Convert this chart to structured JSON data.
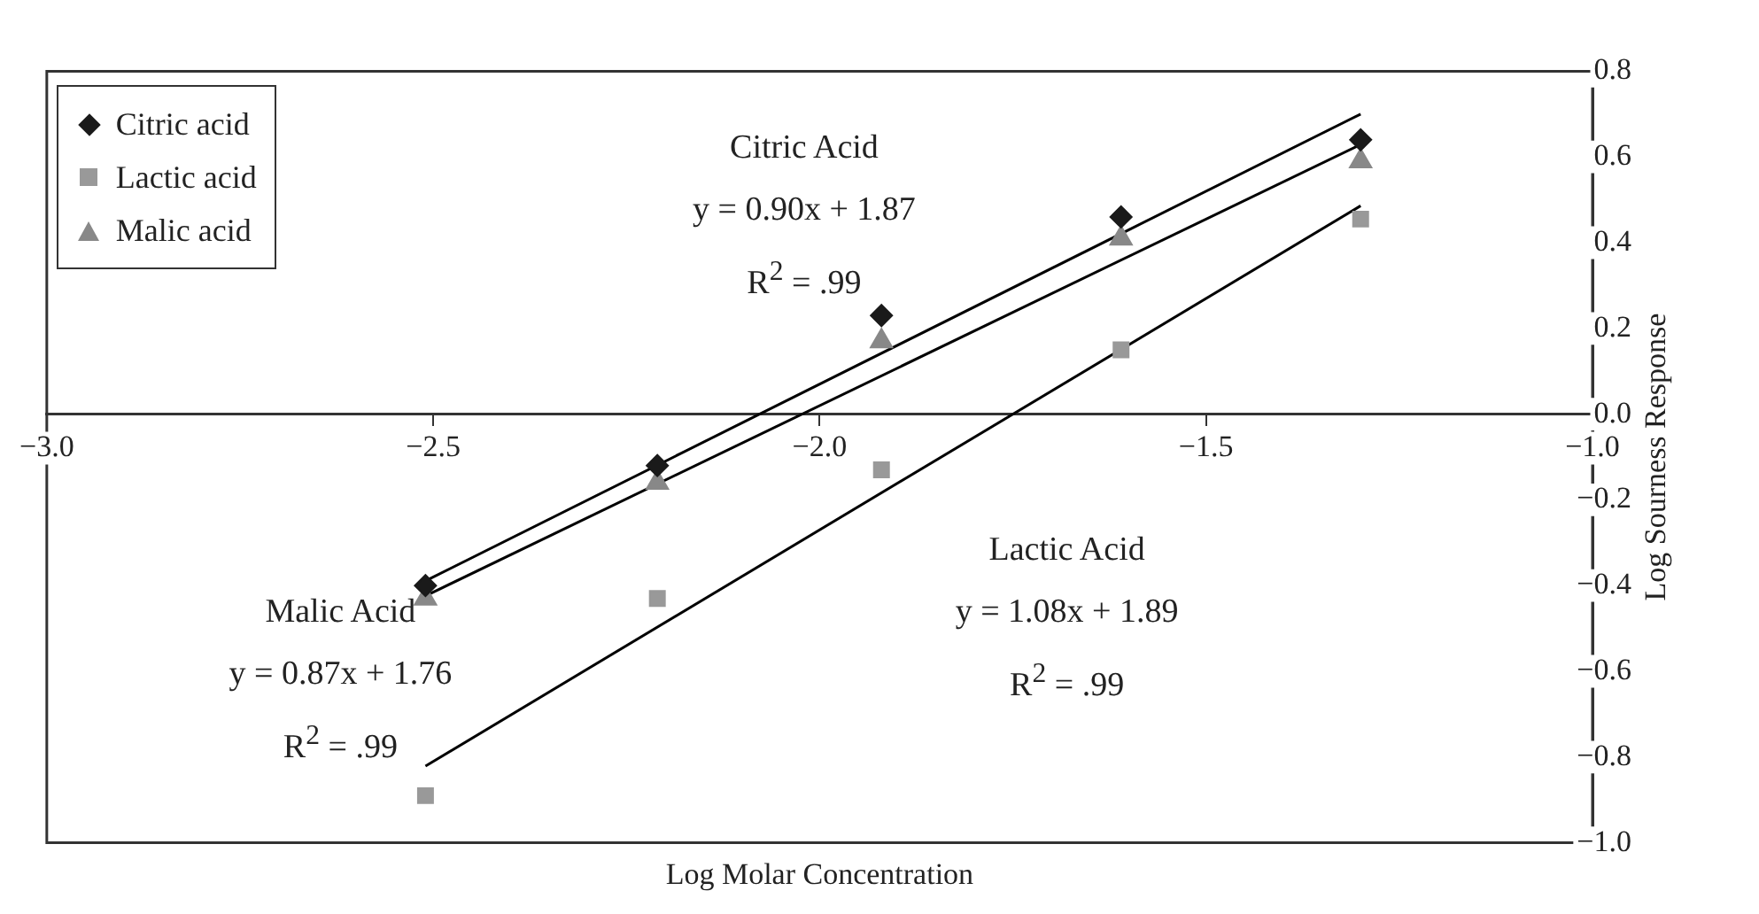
{
  "chart_data": {
    "type": "scatter",
    "xlabel": "Log Molar Concentration",
    "ylabel": "Log Sourness Response",
    "xlim": [
      -3,
      -1
    ],
    "ylim": [
      -1,
      0.8
    ],
    "xticks": [
      {
        "value": -3,
        "label": "−3.0"
      },
      {
        "value": -2.5,
        "label": "−2.5"
      },
      {
        "value": -2,
        "label": "−2.0"
      },
      {
        "value": -1.5,
        "label": "−1.5"
      },
      {
        "value": -1,
        "label": "−1.0"
      }
    ],
    "yticks": [
      {
        "value": -1,
        "label": "−1.0"
      },
      {
        "value": -0.8,
        "label": "−0.8"
      },
      {
        "value": -0.6,
        "label": "−0.6"
      },
      {
        "value": -0.4,
        "label": "−0.4"
      },
      {
        "value": -0.2,
        "label": "−0.2"
      },
      {
        "value": 0,
        "label": "0.0"
      },
      0.2,
      0.4,
      0.6,
      0.8
    ],
    "grid": false,
    "legend": "top left",
    "series": [
      {
        "name": "Citric acid",
        "marker": "diamond",
        "color": "#1a1a1a",
        "x": [
          -2.51,
          -2.21,
          -1.92,
          -1.61,
          -1.3
        ],
        "values": [
          -0.4,
          -0.12,
          0.23,
          0.46,
          0.64
        ]
      },
      {
        "name": "Lactic acid",
        "marker": "square",
        "color": "#999999",
        "x": [
          -2.51,
          -2.21,
          -1.92,
          -1.61,
          -1.3
        ],
        "values": [
          -0.89,
          -0.43,
          -0.13,
          0.15,
          0.455
        ]
      },
      {
        "name": "Malic acid",
        "marker": "triangle",
        "color": "#888888",
        "x": [
          -2.51,
          -2.21,
          -1.92,
          -1.61,
          -1.3
        ],
        "values": [
          -0.43,
          -0.16,
          0.17,
          0.41,
          0.59
        ]
      },
      {
        "type": "line",
        "marker": "none",
        "color": "#000000",
        "x": [
          -2.51,
          -1.3
        ],
        "values": [
          -0.389,
          0.7
        ]
      },
      {
        "type": "line",
        "marker": "none",
        "color": "#000000",
        "x": [
          -2.51,
          -1.3
        ],
        "values": [
          -0.424,
          0.629
        ]
      },
      {
        "type": "line",
        "marker": "none",
        "color": "#000000",
        "x": [
          -2.51,
          -1.3
        ],
        "values": [
          -0.821,
          0.486
        ]
      }
    ],
    "annotations": [
      "Citric Acid\ny = 0.90x + 1.87\nR$^{2}$ = .99",
      "Lactic Acid\ny = 1.08x + 1.89\nR$^{2}$ = .99",
      "Malic Acid\ny = 0.87x + 1.76\nR$^{2}$ = .99"
    ]
  }
}
